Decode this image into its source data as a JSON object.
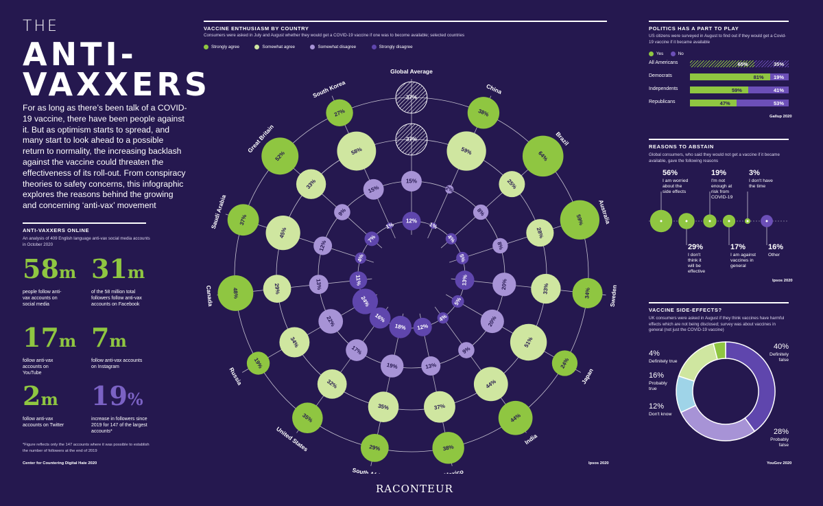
{
  "header": {
    "title_small": "THE",
    "title_line1": "ANTI-",
    "title_line2": "VAXXERS",
    "intro": "For as long as there’s been talk of a COVID-19 vaccine, there have been people against it. But as optimism starts to spread, and many start to look ahead to a possible return to normality, the increasing backlash against the vaccine could threaten the effectiveness of its roll-out. From conspiracy theories to safety concerns, this infographic explores the reasons behind the growing and concerning ‘anti-vax’ movement"
  },
  "online": {
    "title": "ANTI-VAXXERS ONLINE",
    "subtitle": "An analysis of 409 English language anti-vax social media accounts in October 2020",
    "stats": [
      {
        "num": "58",
        "unit": "m",
        "text": "people follow anti-vax accounts on social media",
        "color": "#8fc641"
      },
      {
        "num": "31",
        "unit": "m",
        "text": "of the 58 million total followers follow anti-vax accounts on Facebook",
        "color": "#8fc641"
      },
      {
        "num": "17",
        "unit": "m",
        "text": "follow anti-vax accounts on YouTube",
        "color": "#8fc641"
      },
      {
        "num": "7",
        "unit": "m",
        "text": "follow anti-vax accounts on Instagram",
        "color": "#8fc641"
      },
      {
        "num": "2",
        "unit": "m",
        "text": "follow anti-vax accounts on Twitter",
        "color": "#8fc641"
      },
      {
        "num": "19",
        "unit": "%",
        "text": "increase in followers since 2019 for 147 of the largest accounts*",
        "color": "#7b62c4"
      }
    ],
    "footnote": "*Figure reflects only the 147 accounts where it was possible to establish the number of followers at the end of 2019",
    "source": "Center for Countering Digital Hate 2020"
  },
  "colors": {
    "background": "#25184f",
    "strongly_agree": "#8fc641",
    "somewhat_agree": "#cfe6a0",
    "somewhat_disagree": "#a793d6",
    "strongly_disagree": "#5f46ad"
  },
  "chart_data": [
    {
      "type": "radial-bubble",
      "title": "VACCINE ENTHUSIASM BY COUNTRY",
      "subtitle": "Consumers were asked in July and August whether they would get a COVID-19 vaccine if one was to become available; selected countries",
      "legend": [
        "Strongly agree",
        "Somewhat agree",
        "Somewhat disagree",
        "Strongly disagree"
      ],
      "source": "Ipsos 2020",
      "countries": [
        {
          "name": "Global Average",
          "values": [
            37,
            37,
            15,
            12
          ]
        },
        {
          "name": "China",
          "values": [
            38,
            59,
            2,
            1
          ]
        },
        {
          "name": "Brazil",
          "values": [
            64,
            25,
            8,
            4
          ]
        },
        {
          "name": "Australia",
          "values": [
            59,
            28,
            8,
            5
          ]
        },
        {
          "name": "Sweden",
          "values": [
            34,
            33,
            20,
            13
          ]
        },
        {
          "name": "Japan",
          "values": [
            24,
            51,
            20,
            5
          ]
        },
        {
          "name": "India",
          "values": [
            44,
            44,
            9,
            4
          ]
        },
        {
          "name": "Mexico",
          "values": [
            38,
            37,
            13,
            12
          ]
        },
        {
          "name": "South Africa",
          "values": [
            29,
            35,
            19,
            18
          ]
        },
        {
          "name": "United States",
          "values": [
            35,
            32,
            17,
            16
          ]
        },
        {
          "name": "Russia",
          "values": [
            19,
            34,
            22,
            24
          ]
        },
        {
          "name": "Canada",
          "values": [
            48,
            29,
            13,
            11
          ]
        },
        {
          "name": "Saudi Arabia",
          "values": [
            37,
            45,
            12,
            4
          ]
        },
        {
          "name": "Great Britain",
          "values": [
            52,
            33,
            9,
            7
          ]
        },
        {
          "name": "South Korea",
          "values": [
            27,
            58,
            15,
            1
          ]
        }
      ]
    },
    {
      "type": "bar",
      "title": "POLITICS HAS A PART TO PLAY",
      "subtitle": "US citizens were surveyed in August to find out if they would get a Covid-19 vaccine if it became available",
      "categories": [
        "All Americans",
        "Democrats",
        "Independents",
        "Republicans"
      ],
      "series": [
        {
          "name": "Yes",
          "values": [
            65,
            81,
            59,
            47
          ]
        },
        {
          "name": "No",
          "values": [
            35,
            19,
            41,
            53
          ]
        }
      ],
      "source": "Gallup 2020"
    },
    {
      "type": "scatter",
      "title": "REASONS TO ABSTAIN",
      "subtitle": "Global consumers, who said they would not get a vaccine if it became available, gave the following reasons",
      "items": [
        {
          "value": 56,
          "label": "I am worried about the side effects",
          "color": "#8fc641"
        },
        {
          "value": 29,
          "label": "I don't think it will be effective",
          "color": "#8fc641"
        },
        {
          "value": 19,
          "label": "I'm not enough at risk from COVID-19",
          "color": "#8fc641"
        },
        {
          "value": 17,
          "label": "I am against vaccines in general",
          "color": "#8fc641"
        },
        {
          "value": 3,
          "label": "I don't have the time",
          "color": "#8fc641"
        },
        {
          "value": 16,
          "label": "Other",
          "color": "#6c4fb8"
        }
      ],
      "source": "Ipsos 2020"
    },
    {
      "type": "pie",
      "title": "VACCINE SIDE-EFFECTS?",
      "subtitle": "UK consumers were asked in August if they think vaccines have harmful effects which are not being disclosed; survey was about vaccines in general (not just the COVID-19 vaccine)",
      "slices": [
        {
          "label": "Definitely false",
          "value": 40,
          "color": "#5f46ad"
        },
        {
          "label": "Probably false",
          "value": 28,
          "color": "#a793d6"
        },
        {
          "label": "Don't know",
          "value": 12,
          "color": "#9fd4e8"
        },
        {
          "label": "Probably true",
          "value": 16,
          "color": "#cfe6a0"
        },
        {
          "label": "Definitely true",
          "value": 4,
          "color": "#8fc641"
        }
      ],
      "source": "YouGov 2020"
    }
  ],
  "pct": "%",
  "brand": "RACONTEUR"
}
